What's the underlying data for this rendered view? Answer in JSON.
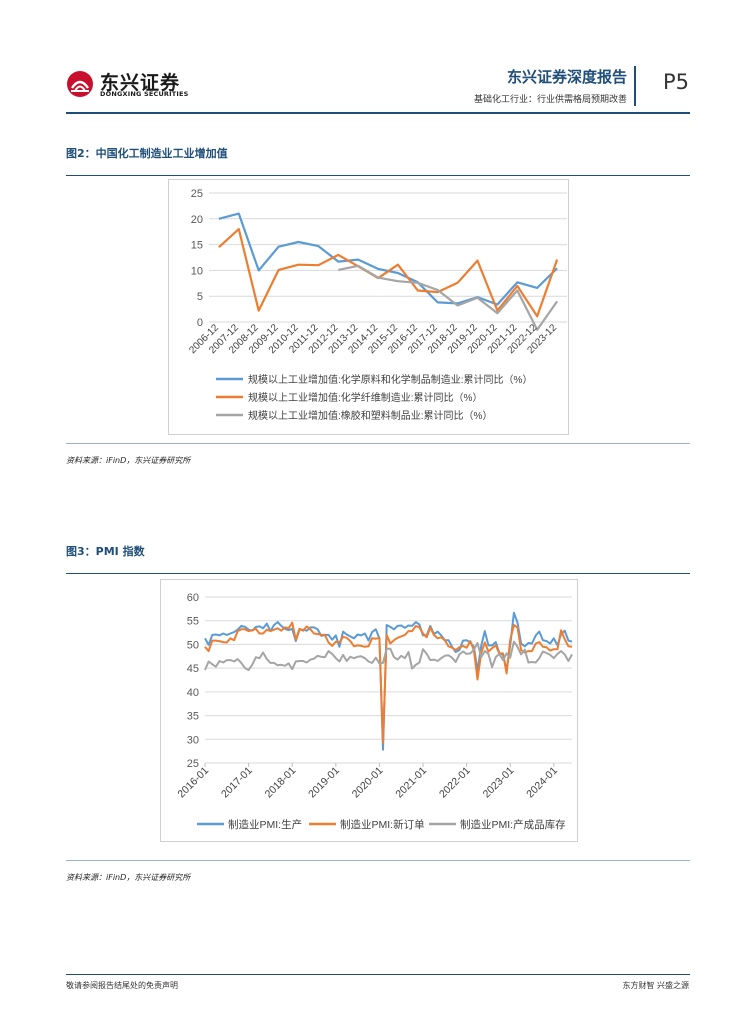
{
  "header": {
    "logo_cn": "东兴证券",
    "logo_en": "DONGXING SECURITIES",
    "report_title": "东兴证券深度报告",
    "report_subtitle": "基础化工行业：行业供需格局预期改善",
    "page_label": "P5",
    "brand_color": "#1f4e79",
    "logo_color": "#c8102e"
  },
  "figure2": {
    "title": "图2：中国化工制造业工业增加值",
    "source": "资料来源：iFinD，东兴证券研究所"
  },
  "figure3": {
    "title": "图3：PMI 指数",
    "source": "资料来源：iFinD，东兴证券研究所"
  },
  "footer": {
    "left": "敬请参阅报告结尾处的免责声明",
    "right": "东方财智 兴盛之源"
  },
  "chart_data": [
    {
      "type": "line",
      "title": "",
      "ylim": [
        0,
        25
      ],
      "yticks": [
        0,
        5,
        10,
        15,
        20,
        25
      ],
      "categories": [
        "2006-12",
        "2007-12",
        "2008-12",
        "2009-12",
        "2010-12",
        "2011-12",
        "2012-12",
        "2013-12",
        "2014-12",
        "2015-12",
        "2016-12",
        "2017-12",
        "2018-12",
        "2019-12",
        "2020-12",
        "2021-12",
        "2022-12",
        "2023-12"
      ],
      "grid": true,
      "legend_position": "bottom",
      "series": [
        {
          "name": "规模以上工业增加值:化学原料和化学制品制造业:累计同比（%）",
          "color": "#5b9bd5",
          "values": [
            20,
            21,
            10,
            14.6,
            15.5,
            14.7,
            11.7,
            12.1,
            10.3,
            9.5,
            7.7,
            3.8,
            3.6,
            4.8,
            3.4,
            7.7,
            6.6,
            10.4
          ]
        },
        {
          "name": "规模以上工业增加值:化学纤维制造业:累计同比（%）",
          "color": "#ed7d31",
          "values": [
            14.5,
            18,
            2.2,
            10.1,
            11.1,
            11.0,
            13.0,
            10.8,
            8.5,
            11.1,
            6.1,
            5.8,
            7.6,
            11.9,
            2.2,
            7.0,
            1.1,
            12.1
          ]
        },
        {
          "name": "规模以上工业增加值:橡胶和塑料制品业:累计同比（%）",
          "color": "#a5a5a5",
          "values": [
            null,
            null,
            null,
            null,
            null,
            null,
            10.1,
            10.9,
            8.6,
            7.9,
            7.6,
            6.2,
            3.2,
            4.7,
            1.7,
            6.1,
            -1.5,
            4.0
          ]
        }
      ]
    },
    {
      "type": "line",
      "title": "",
      "ylim": [
        25,
        60
      ],
      "yticks": [
        25,
        30,
        35,
        40,
        45,
        50,
        55,
        60
      ],
      "x_start": "2016-01",
      "x_ticks": [
        "2016-01",
        "2017-01",
        "2018-01",
        "2019-01",
        "2020-01",
        "2021-01",
        "2022-01",
        "2023-01",
        "2024-01"
      ],
      "grid": true,
      "legend_position": "bottom",
      "series": [
        {
          "name": "制造业PMI:生产",
          "color": "#5b9bd5",
          "values": [
            51.3,
            49.9,
            52.0,
            52.1,
            51.9,
            52.3,
            52.0,
            52.3,
            52.6,
            53.1,
            53.9,
            53.7,
            53.1,
            52.9,
            53.7,
            53.8,
            53.4,
            54.4,
            52.8,
            54.1,
            54.7,
            53.9,
            53.3,
            53.0,
            53.3,
            50.7,
            53.1,
            53.1,
            52.9,
            53.6,
            53.6,
            53.2,
            51.8,
            52.0,
            52.0,
            51.0,
            51.9,
            49.5,
            52.7,
            52.1,
            51.7,
            51.3,
            52.1,
            51.9,
            52.3,
            50.8,
            52.6,
            53.2,
            51.3,
            27.8,
            54.1,
            53.7,
            53.2,
            53.9,
            54.0,
            53.5,
            54.0,
            53.9,
            54.7,
            54.2,
            51.9,
            51.9,
            53.9,
            52.2,
            52.7,
            51.9,
            50.9,
            50.9,
            49.5,
            48.4,
            48.8,
            50.8,
            50.9,
            50.4,
            49.5,
            44.4,
            49.7,
            52.8,
            49.8,
            49.8,
            50.5,
            48.2,
            47.8,
            44.6,
            49.8,
            56.7,
            54.6,
            50.2,
            49.6,
            50.3,
            50.2,
            51.9,
            52.7,
            50.9,
            50.7,
            50.2,
            51.3,
            49.8,
            52.2,
            52.9,
            50.8,
            50.6
          ]
        },
        {
          "name": "制造业PMI:新订单",
          "color": "#ed7d31",
          "values": [
            49.5,
            48.6,
            50.8,
            50.8,
            50.7,
            50.5,
            50.4,
            51.3,
            50.9,
            52.8,
            53.2,
            53.2,
            52.8,
            53.0,
            53.3,
            52.3,
            52.3,
            53.1,
            52.8,
            53.1,
            53.4,
            52.9,
            53.6,
            53.4,
            54.6,
            51.0,
            53.3,
            52.9,
            53.8,
            53.2,
            52.3,
            52.2,
            52.0,
            52.0,
            50.4,
            49.7,
            50.6,
            50.4,
            51.6,
            51.4,
            50.7,
            49.6,
            49.8,
            49.7,
            49.5,
            49.6,
            51.3,
            51.2,
            51.4,
            29.3,
            52.0,
            50.2,
            50.9,
            51.4,
            51.7,
            52.0,
            52.8,
            52.8,
            53.9,
            53.6,
            52.3,
            51.5,
            53.6,
            52.0,
            51.3,
            51.5,
            50.9,
            49.6,
            49.3,
            48.8,
            49.4,
            49.7,
            49.3,
            50.7,
            48.8,
            42.6,
            48.2,
            50.4,
            48.5,
            49.2,
            49.8,
            48.1,
            48.1,
            43.9,
            50.9,
            54.1,
            53.6,
            48.8,
            48.3,
            48.6,
            48.6,
            50.2,
            50.5,
            49.5,
            49.4,
            48.7,
            49.0,
            49.0,
            53.0,
            51.1,
            49.6,
            49.5
          ]
        },
        {
          "name": "制造业PMI:产成品库存",
          "color": "#a5a5a5",
          "values": [
            44.6,
            46.4,
            45.8,
            45.3,
            46.5,
            46.2,
            46.7,
            46.7,
            46.4,
            46.9,
            46.1,
            45.0,
            44.6,
            45.7,
            47.3,
            47.1,
            48.3,
            46.9,
            46.1,
            46.1,
            45.6,
            45.7,
            45.5,
            46.0,
            44.8,
            46.4,
            46.5,
            46.5,
            46.2,
            46.8,
            47.0,
            47.6,
            47.4,
            47.3,
            48.6,
            48.0,
            47.1,
            46.4,
            47.8,
            46.5,
            47.4,
            47.1,
            47.4,
            47.5,
            47.1,
            46.4,
            46.1,
            47.2,
            46.0,
            46.1,
            49.1,
            49.1,
            47.3,
            46.8,
            47.6,
            47.1,
            48.4,
            44.9,
            45.7,
            46.2,
            49.0,
            48.0,
            46.7,
            46.8,
            46.5,
            47.1,
            47.6,
            47.7,
            47.2,
            46.3,
            47.9,
            48.5,
            48.0,
            48.1,
            48.9,
            50.3,
            47.3,
            48.6,
            48.0,
            45.2,
            47.3,
            48.0,
            46.7,
            48.1,
            47.2,
            50.6,
            49.5,
            47.9,
            48.9,
            46.2,
            46.3,
            46.2,
            47.1,
            48.5,
            48.2,
            47.8,
            47.1,
            48.0,
            48.6,
            47.9,
            46.5,
            47.9
          ]
        }
      ]
    }
  ]
}
